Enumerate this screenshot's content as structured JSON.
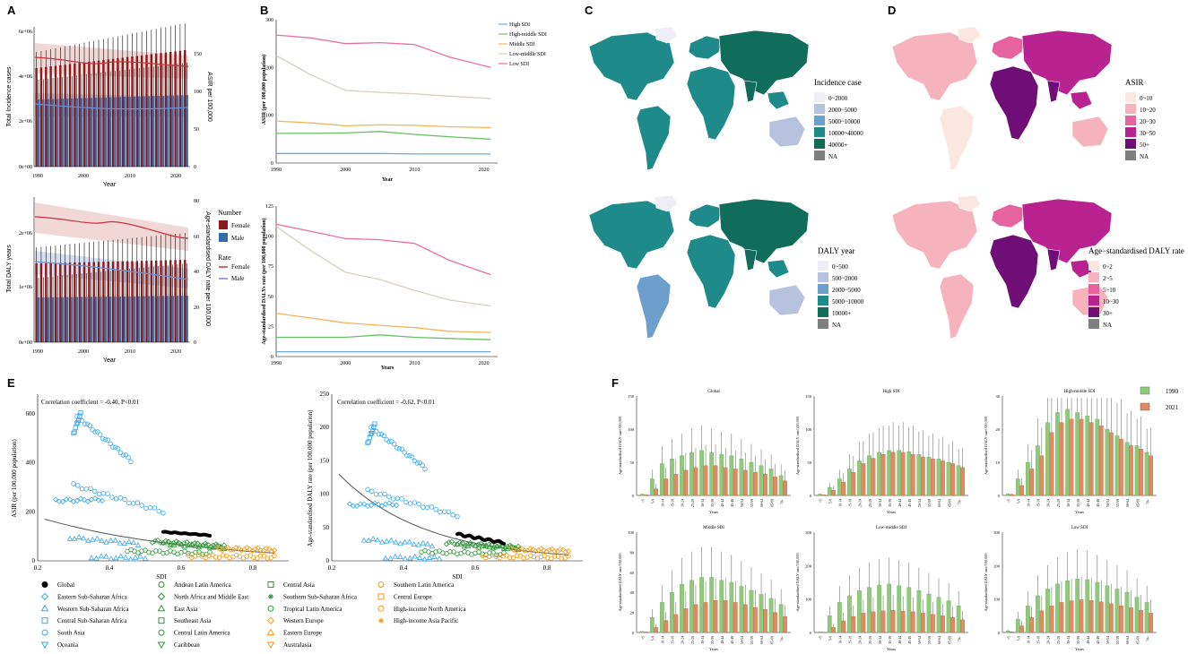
{
  "panel_labels": {
    "A": "A",
    "B": "B",
    "C": "C",
    "D": "D",
    "E": "E",
    "F": "F"
  },
  "panelA": {
    "top": {
      "y_left_label": "Total Incidence cases",
      "y_right_label": "ASIR per 100,000",
      "x_label": "Year",
      "y_left_ticks": [
        "0e+00",
        "2e+06",
        "4e+06",
        "6e+06"
      ],
      "y_right_ticks": [
        "0",
        "50",
        "100",
        "150"
      ],
      "x_ticks": [
        "1990",
        "2000",
        "2010",
        "2020"
      ]
    },
    "bottom": {
      "y_left_label": "Total DALY years",
      "y_right_label": "Age-standardised DALY rate per 100,000",
      "x_label": "Year",
      "y_left_ticks": [
        "0e+00",
        "1e+06",
        "2e+06"
      ],
      "y_right_ticks": [
        "0",
        "20",
        "40",
        "60",
        "80"
      ],
      "x_ticks": [
        "1990",
        "2000",
        "2010",
        "2020"
      ]
    },
    "legend": {
      "number_title": "Number",
      "rate_title": "Rate",
      "female": "Female",
      "male": "Male",
      "colors": {
        "female": "#8b1a1a",
        "male": "#2f6fb0",
        "female_line": "#c8323c",
        "male_line": "#6f8fd0"
      }
    }
  },
  "chart_data": [
    {
      "type": "line",
      "title": "B upper",
      "xlabel": "Year",
      "ylabel": "ASIR (per 100,000 population)",
      "x": [
        1990,
        1995,
        2000,
        2005,
        2010,
        2015,
        2021
      ],
      "xlim": [
        1990,
        2022
      ],
      "ylim": [
        0,
        300
      ],
      "x_ticks": [
        "1990",
        "2000",
        "2010",
        "2020"
      ],
      "y_ticks": [
        "0",
        "100",
        "200",
        "300"
      ],
      "series": [
        {
          "name": "High SDI",
          "color": "#6fa8dc",
          "values": [
            20,
            20,
            20,
            20,
            19,
            19,
            19
          ]
        },
        {
          "name": "High-middle SDI",
          "color": "#6abf69",
          "values": [
            62,
            62,
            63,
            66,
            60,
            55,
            50
          ]
        },
        {
          "name": "Middle SDI",
          "color": "#f4b35b",
          "values": [
            88,
            84,
            78,
            80,
            79,
            76,
            74
          ]
        },
        {
          "name": "Low-middle SDI",
          "color": "#d8cfc0",
          "values": [
            225,
            185,
            152,
            148,
            145,
            140,
            135
          ]
        },
        {
          "name": "Low SDI",
          "color": "#e66fa6",
          "values": [
            268,
            262,
            250,
            252,
            248,
            222,
            200
          ]
        }
      ]
    },
    {
      "type": "line",
      "title": "B lower",
      "xlabel": "Years",
      "ylabel": "Age-standardised DALYs rate (per 100,000 population)",
      "x": [
        1990,
        1995,
        2000,
        2005,
        2010,
        2015,
        2021
      ],
      "xlim": [
        1990,
        2022
      ],
      "ylim": [
        0,
        125
      ],
      "x_ticks": [
        "1990",
        "2000",
        "2010",
        "2020"
      ],
      "y_ticks": [
        "0",
        "25",
        "50",
        "75",
        "100",
        "125"
      ],
      "series": [
        {
          "name": "High SDI",
          "color": "#6fa8dc",
          "values": [
            4,
            4,
            4,
            4,
            4,
            4,
            4
          ]
        },
        {
          "name": "High-middle SDI",
          "color": "#6abf69",
          "values": [
            16,
            16,
            16,
            18,
            16,
            15,
            14
          ]
        },
        {
          "name": "Middle SDI",
          "color": "#f4b35b",
          "values": [
            36,
            32,
            28,
            26,
            24,
            21,
            20
          ]
        },
        {
          "name": "Low-middle SDI",
          "color": "#d8cfc0",
          "values": [
            108,
            88,
            70,
            64,
            55,
            47,
            42
          ]
        },
        {
          "name": "Low SDI",
          "color": "#e66fa6",
          "values": [
            110,
            104,
            98,
            97,
            94,
            80,
            68
          ]
        }
      ]
    },
    {
      "type": "scatter",
      "title": "E left",
      "xlabel": "SDI",
      "ylabel": "ASIR (per 100,000 population)",
      "annotation": "Correlation coefficient = -0.40, P<0.01",
      "xlim": [
        0.2,
        0.9
      ],
      "ylim": [
        0,
        680
      ],
      "x_ticks": [
        "0.2",
        "0.4",
        "0.6",
        "0.8"
      ],
      "y_ticks": [
        "0",
        "200",
        "400",
        "600"
      ]
    },
    {
      "type": "scatter",
      "title": "E right",
      "xlabel": "SDI",
      "ylabel": "Age-standardised DALY rate (per 100,000 population)",
      "annotation": "Correlation coefficient = -0.62, P<0.01",
      "xlim": [
        0.2,
        0.9
      ],
      "ylim": [
        0,
        250
      ],
      "x_ticks": [
        "0.2",
        "0.4",
        "0.6",
        "0.8"
      ],
      "y_ticks": [
        "0",
        "50",
        "100",
        "150",
        "200",
        "250"
      ]
    },
    {
      "type": "bar",
      "title": "F",
      "ylabel": "Age-standardised DALY rate/100,000",
      "xlabel": "Years",
      "categories": [
        "<5",
        "5-9",
        "10-14",
        "15-19",
        "20-24",
        "25-29",
        "30-34",
        "35-39",
        "40-44",
        "45-49",
        "50-54",
        "55-59",
        "60-64",
        "65-69",
        "70+"
      ],
      "legend": [
        "1990",
        "2021"
      ],
      "colors": {
        "1990": "#8fc97a",
        "2021": "#e08a62"
      },
      "panels": [
        {
          "name": "Global",
          "ylim": [
            0,
            150
          ],
          "y_ticks": [
            "0",
            "50",
            "100",
            "150"
          ],
          "y1990": [
            2,
            25,
            48,
            55,
            60,
            65,
            68,
            65,
            62,
            60,
            55,
            50,
            45,
            40,
            30
          ],
          "y2021": [
            1,
            10,
            25,
            32,
            38,
            42,
            45,
            45,
            42,
            40,
            38,
            35,
            32,
            28,
            22
          ]
        },
        {
          "name": "High SDI",
          "ylim": [
            0,
            150
          ],
          "y_ticks": [
            "0",
            "50",
            "100",
            "150"
          ],
          "y1990": [
            2,
            12,
            25,
            40,
            52,
            60,
            65,
            68,
            68,
            66,
            62,
            58,
            55,
            50,
            45
          ],
          "y2021": [
            1,
            8,
            20,
            35,
            48,
            56,
            62,
            65,
            65,
            62,
            58,
            55,
            52,
            48,
            42
          ]
        },
        {
          "name": "High-middle SDI",
          "ylim": [
            0,
            30
          ],
          "y_ticks": [
            "0",
            "10",
            "20",
            "30"
          ],
          "y1990": [
            0.5,
            5,
            10,
            15,
            22,
            25,
            26,
            25,
            24,
            23,
            20,
            18,
            16,
            15,
            13
          ],
          "y2021": [
            0.3,
            3,
            8,
            12,
            19,
            22,
            23,
            23,
            22,
            21,
            19,
            17,
            15,
            14,
            12
          ]
        },
        {
          "name": "Middle SDI",
          "ylim": [
            0,
            100
          ],
          "y_ticks": [
            "0",
            "20",
            "40",
            "60",
            "80",
            "100"
          ],
          "y1990": [
            1,
            15,
            30,
            40,
            48,
            52,
            55,
            55,
            52,
            50,
            46,
            42,
            38,
            34,
            28
          ],
          "y2021": [
            0.5,
            5,
            12,
            18,
            24,
            28,
            30,
            32,
            32,
            30,
            28,
            25,
            23,
            20,
            16
          ]
        },
        {
          "name": "Low-middle SDI",
          "ylim": [
            0,
            300
          ],
          "y_ticks": [
            "0",
            "100",
            "200",
            "300"
          ],
          "y1990": [
            2,
            50,
            90,
            110,
            125,
            135,
            142,
            145,
            140,
            135,
            125,
            115,
            105,
            95,
            80
          ],
          "y2021": [
            1,
            15,
            35,
            48,
            58,
            62,
            65,
            66,
            64,
            62,
            58,
            54,
            50,
            45,
            38
          ]
        },
        {
          "name": "Low SDI",
          "ylim": [
            0,
            300
          ],
          "y_ticks": [
            "0",
            "100",
            "200",
            "300"
          ],
          "y1990": [
            5,
            40,
            80,
            110,
            130,
            145,
            155,
            160,
            158,
            150,
            140,
            130,
            120,
            105,
            90
          ],
          "y2021": [
            2,
            20,
            45,
            65,
            80,
            90,
            95,
            98,
            96,
            92,
            86,
            80,
            74,
            66,
            58
          ]
        }
      ]
    }
  ],
  "panelB_legend": [
    "High SDI",
    "High-middle SDI",
    "Middle SDI",
    "Low-middle SDI",
    "Low SDI"
  ],
  "maps": {
    "C_top": {
      "title": "Incidence case",
      "items": [
        "0~2000",
        "2000~5000",
        "5000~10000",
        "10000~40000",
        "40000+",
        "NA"
      ],
      "colors": [
        "#efeef6",
        "#b7c2df",
        "#6d9fcd",
        "#1e8a8a",
        "#0f6d5a",
        "#7f7f7f"
      ]
    },
    "C_bottom": {
      "title": "DALY year",
      "items": [
        "0~500",
        "500~2000",
        "2000~5000",
        "5000~10000",
        "10000+",
        "NA"
      ],
      "colors": [
        "#efeef6",
        "#b7c2df",
        "#6d9fcd",
        "#1e8a8a",
        "#0f6d5a",
        "#7f7f7f"
      ]
    },
    "D_top": {
      "title": "ASIR",
      "items": [
        "0~10",
        "10~20",
        "20~30",
        "30~50",
        "50+",
        "NA"
      ],
      "colors": [
        "#fbe6e0",
        "#f6b2bd",
        "#e663a0",
        "#b8238f",
        "#6f0e76",
        "#7f7f7f"
      ]
    },
    "D_bottom": {
      "title": "Age−standardised DALY rate",
      "items": [
        "0~2",
        "2~5",
        "5~10",
        "10~30",
        "30+",
        "NA"
      ],
      "colors": [
        "#fbe6e0",
        "#f6b2bd",
        "#e663a0",
        "#b8238f",
        "#6f0e76",
        "#7f7f7f"
      ]
    }
  },
  "panelE_legend": [
    {
      "label": "Global",
      "color": "#000000",
      "shape": "dot"
    },
    {
      "label": "Eastern Sub-Saharan Africa",
      "color": "#3aa9e8",
      "shape": "diamond"
    },
    {
      "label": "Western Sub-Saharan Africa",
      "color": "#3aa9e8",
      "shape": "triangle"
    },
    {
      "label": "Central Sub-Saharan Africa",
      "color": "#3aa9e8",
      "shape": "square"
    },
    {
      "label": "South Asia",
      "color": "#3aa9e8",
      "shape": "circle"
    },
    {
      "label": "Oceania",
      "color": "#3aa9e8",
      "shape": "tridown"
    },
    {
      "label": "Andean Latin America",
      "color": "#2e9a3a",
      "shape": "circlex"
    },
    {
      "label": "North Africa and Middle East",
      "color": "#2e9a3a",
      "shape": "diamondplus"
    },
    {
      "label": "East Asia",
      "color": "#2e9a3a",
      "shape": "triangle"
    },
    {
      "label": "Southeast Asia",
      "color": "#2e9a3a",
      "shape": "square"
    },
    {
      "label": "Central Latin America",
      "color": "#2e9a3a",
      "shape": "circle"
    },
    {
      "label": "Caribbean",
      "color": "#2e9a3a",
      "shape": "tridown"
    },
    {
      "label": "Central Asia",
      "color": "#2e9a3a",
      "shape": "squareplus"
    },
    {
      "label": "Southern Sub-Saharan Africa",
      "color": "#2e9a3a",
      "shape": "star"
    },
    {
      "label": "Tropical Latin America",
      "color": "#2e9a3a",
      "shape": "circleplus"
    },
    {
      "label": "Western Europe",
      "color": "#f59a17",
      "shape": "diamond"
    },
    {
      "label": "Eastern Europe",
      "color": "#f59a17",
      "shape": "triangle"
    },
    {
      "label": "Australasia",
      "color": "#f59a17",
      "shape": "tridown"
    },
    {
      "label": "Southern Latin America",
      "color": "#f59a17",
      "shape": "circle"
    },
    {
      "label": "Central Europe",
      "color": "#f59a17",
      "shape": "square"
    },
    {
      "label": "High-income North America",
      "color": "#f59a17",
      "shape": "circle"
    },
    {
      "label": "High-income Asia Pacific",
      "color": "#f59a17",
      "shape": "star"
    }
  ]
}
